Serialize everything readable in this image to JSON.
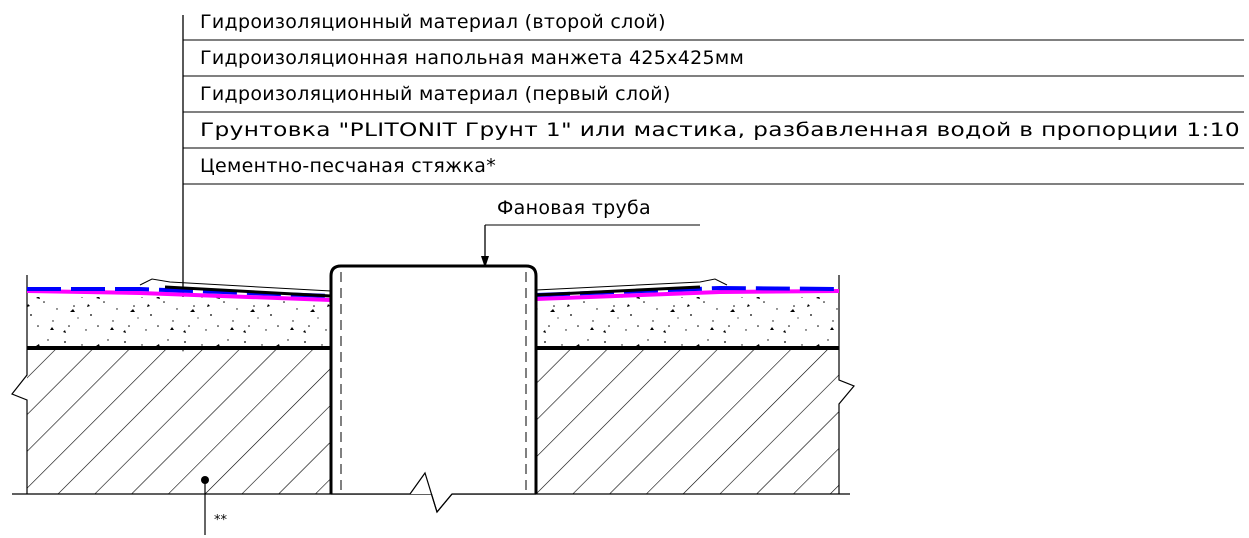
{
  "leader_labels": [
    "Гидроизоляционный материал (второй слой)",
    "Гидроизоляционная напольная манжета 425x425мм",
    "Гидроизоляционный материал (первый слой)",
    "Грунтовка \"PLITONIT Грунт 1\" или мастика, разбавленная водой в пропорции 1:10",
    "Цементно-песчаная стяжка*"
  ],
  "pipe_label": "Фановая труба",
  "slab_note": "**",
  "colors": {
    "membrane_pink": "#ff00ff",
    "membrane_blue": "#0000ff",
    "line": "#000000",
    "background": "#ffffff"
  }
}
